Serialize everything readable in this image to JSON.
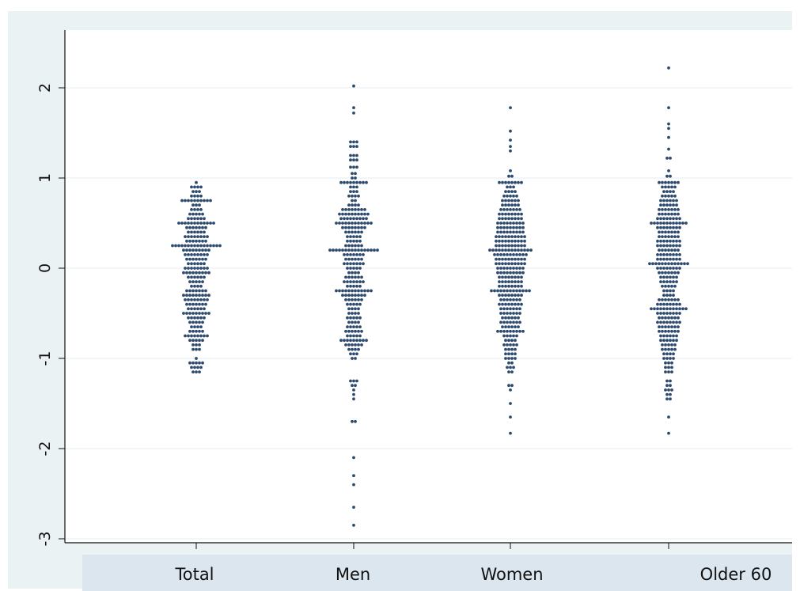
{
  "chart_data": {
    "type": "scatter",
    "subtype": "dot-plot",
    "categories": [
      "Total",
      "Men",
      "Women",
      "Older 60"
    ],
    "y_ticks": [
      "2",
      "1",
      "0",
      "-1",
      "-2",
      "-3"
    ],
    "ylim": [
      -3.05,
      2.6
    ],
    "grid": true,
    "legend": "none",
    "marker_color": "#2d4a6e",
    "grid_color": "#e6eef0",
    "series": [
      {
        "category": "Total",
        "bins": [
          [
            0.95,
            1
          ],
          [
            0.9,
            4
          ],
          [
            0.85,
            3
          ],
          [
            0.8,
            4
          ],
          [
            0.75,
            10
          ],
          [
            0.7,
            3
          ],
          [
            0.65,
            4
          ],
          [
            0.6,
            5
          ],
          [
            0.55,
            6
          ],
          [
            0.5,
            12
          ],
          [
            0.45,
            7
          ],
          [
            0.4,
            6
          ],
          [
            0.35,
            8
          ],
          [
            0.3,
            7
          ],
          [
            0.25,
            16
          ],
          [
            0.2,
            9
          ],
          [
            0.15,
            8
          ],
          [
            0.1,
            7
          ],
          [
            0.05,
            6
          ],
          [
            0.0,
            8
          ],
          [
            -0.05,
            9
          ],
          [
            -0.1,
            6
          ],
          [
            -0.15,
            5
          ],
          [
            -0.2,
            4
          ],
          [
            -0.25,
            7
          ],
          [
            -0.3,
            9
          ],
          [
            -0.35,
            8
          ],
          [
            -0.4,
            7
          ],
          [
            -0.45,
            6
          ],
          [
            -0.5,
            9
          ],
          [
            -0.55,
            6
          ],
          [
            -0.6,
            5
          ],
          [
            -0.65,
            4
          ],
          [
            -0.7,
            5
          ],
          [
            -0.75,
            8
          ],
          [
            -0.8,
            5
          ],
          [
            -0.85,
            3
          ],
          [
            -0.9,
            3
          ],
          [
            -1.0,
            1
          ],
          [
            -1.05,
            5
          ],
          [
            -1.1,
            4
          ],
          [
            -1.15,
            3
          ]
        ]
      },
      {
        "category": "Men",
        "bins": [
          [
            2.02,
            1
          ],
          [
            1.78,
            1
          ],
          [
            1.72,
            1
          ],
          [
            1.4,
            3
          ],
          [
            1.35,
            3
          ],
          [
            1.25,
            3
          ],
          [
            1.2,
            3
          ],
          [
            1.12,
            3
          ],
          [
            1.05,
            2
          ],
          [
            1.0,
            2
          ],
          [
            0.95,
            9
          ],
          [
            0.9,
            3
          ],
          [
            0.85,
            3
          ],
          [
            0.8,
            4
          ],
          [
            0.75,
            2
          ],
          [
            0.7,
            4
          ],
          [
            0.65,
            8
          ],
          [
            0.6,
            10
          ],
          [
            0.55,
            9
          ],
          [
            0.5,
            12
          ],
          [
            0.45,
            8
          ],
          [
            0.4,
            6
          ],
          [
            0.35,
            5
          ],
          [
            0.3,
            5
          ],
          [
            0.25,
            6
          ],
          [
            0.2,
            16
          ],
          [
            0.15,
            7
          ],
          [
            0.1,
            6
          ],
          [
            0.05,
            7
          ],
          [
            0.0,
            5
          ],
          [
            -0.05,
            4
          ],
          [
            -0.1,
            6
          ],
          [
            -0.15,
            7
          ],
          [
            -0.2,
            5
          ],
          [
            -0.25,
            12
          ],
          [
            -0.3,
            8
          ],
          [
            -0.35,
            6
          ],
          [
            -0.4,
            5
          ],
          [
            -0.45,
            4
          ],
          [
            -0.5,
            4
          ],
          [
            -0.55,
            5
          ],
          [
            -0.6,
            4
          ],
          [
            -0.65,
            5
          ],
          [
            -0.7,
            6
          ],
          [
            -0.75,
            5
          ],
          [
            -0.8,
            9
          ],
          [
            -0.85,
            6
          ],
          [
            -0.9,
            4
          ],
          [
            -0.95,
            3
          ],
          [
            -1.0,
            2
          ],
          [
            -1.25,
            3
          ],
          [
            -1.3,
            2
          ],
          [
            -1.35,
            1
          ],
          [
            -1.4,
            1
          ],
          [
            -1.45,
            1
          ],
          [
            -1.7,
            2
          ],
          [
            -2.1,
            1
          ],
          [
            -2.3,
            1
          ],
          [
            -2.4,
            1
          ],
          [
            -2.65,
            1
          ],
          [
            -2.85,
            1
          ]
        ]
      },
      {
        "category": "Women",
        "bins": [
          [
            1.78,
            1
          ],
          [
            1.52,
            1
          ],
          [
            1.42,
            1
          ],
          [
            1.35,
            1
          ],
          [
            1.3,
            1
          ],
          [
            1.08,
            1
          ],
          [
            1.02,
            2
          ],
          [
            0.95,
            8
          ],
          [
            0.9,
            3
          ],
          [
            0.85,
            4
          ],
          [
            0.8,
            5
          ],
          [
            0.75,
            6
          ],
          [
            0.7,
            6
          ],
          [
            0.65,
            7
          ],
          [
            0.6,
            8
          ],
          [
            0.55,
            8
          ],
          [
            0.5,
            9
          ],
          [
            0.45,
            9
          ],
          [
            0.4,
            9
          ],
          [
            0.35,
            10
          ],
          [
            0.3,
            10
          ],
          [
            0.25,
            10
          ],
          [
            0.2,
            14
          ],
          [
            0.15,
            11
          ],
          [
            0.1,
            10
          ],
          [
            0.05,
            10
          ],
          [
            0.0,
            9
          ],
          [
            -0.05,
            9
          ],
          [
            -0.1,
            8
          ],
          [
            -0.15,
            8
          ],
          [
            -0.2,
            8
          ],
          [
            -0.25,
            13
          ],
          [
            -0.3,
            8
          ],
          [
            -0.35,
            7
          ],
          [
            -0.4,
            8
          ],
          [
            -0.45,
            7
          ],
          [
            -0.5,
            7
          ],
          [
            -0.55,
            6
          ],
          [
            -0.6,
            7
          ],
          [
            -0.65,
            6
          ],
          [
            -0.7,
            9
          ],
          [
            -0.75,
            5
          ],
          [
            -0.8,
            4
          ],
          [
            -0.85,
            5
          ],
          [
            -0.9,
            4
          ],
          [
            -0.95,
            4
          ],
          [
            -1.0,
            4
          ],
          [
            -1.05,
            2
          ],
          [
            -1.1,
            3
          ],
          [
            -1.15,
            2
          ],
          [
            -1.3,
            2
          ],
          [
            -1.35,
            1
          ],
          [
            -1.5,
            1
          ],
          [
            -1.65,
            1
          ],
          [
            -1.83,
            1
          ]
        ]
      },
      {
        "category": "Older 60",
        "bins": [
          [
            2.22,
            1
          ],
          [
            1.78,
            1
          ],
          [
            1.6,
            1
          ],
          [
            1.55,
            1
          ],
          [
            1.45,
            1
          ],
          [
            1.32,
            1
          ],
          [
            1.22,
            2
          ],
          [
            1.08,
            1
          ],
          [
            1.02,
            2
          ],
          [
            0.95,
            7
          ],
          [
            0.9,
            5
          ],
          [
            0.85,
            4
          ],
          [
            0.8,
            5
          ],
          [
            0.75,
            6
          ],
          [
            0.7,
            6
          ],
          [
            0.65,
            7
          ],
          [
            0.6,
            7
          ],
          [
            0.55,
            8
          ],
          [
            0.5,
            12
          ],
          [
            0.45,
            8
          ],
          [
            0.4,
            7
          ],
          [
            0.35,
            7
          ],
          [
            0.3,
            8
          ],
          [
            0.25,
            8
          ],
          [
            0.2,
            7
          ],
          [
            0.15,
            8
          ],
          [
            0.1,
            8
          ],
          [
            0.05,
            13
          ],
          [
            0.0,
            8
          ],
          [
            -0.05,
            7
          ],
          [
            -0.1,
            6
          ],
          [
            -0.15,
            6
          ],
          [
            -0.2,
            5
          ],
          [
            -0.25,
            4
          ],
          [
            -0.3,
            4
          ],
          [
            -0.35,
            7
          ],
          [
            -0.4,
            8
          ],
          [
            -0.45,
            12
          ],
          [
            -0.5,
            8
          ],
          [
            -0.55,
            7
          ],
          [
            -0.6,
            8
          ],
          [
            -0.65,
            7
          ],
          [
            -0.7,
            7
          ],
          [
            -0.75,
            6
          ],
          [
            -0.8,
            6
          ],
          [
            -0.85,
            5
          ],
          [
            -0.9,
            5
          ],
          [
            -0.95,
            4
          ],
          [
            -1.0,
            4
          ],
          [
            -1.05,
            3
          ],
          [
            -1.1,
            3
          ],
          [
            -1.15,
            3
          ],
          [
            -1.25,
            2
          ],
          [
            -1.3,
            2
          ],
          [
            -1.35,
            3
          ],
          [
            -1.4,
            2
          ],
          [
            -1.45,
            2
          ],
          [
            -1.65,
            1
          ],
          [
            -1.83,
            1
          ]
        ]
      }
    ]
  }
}
